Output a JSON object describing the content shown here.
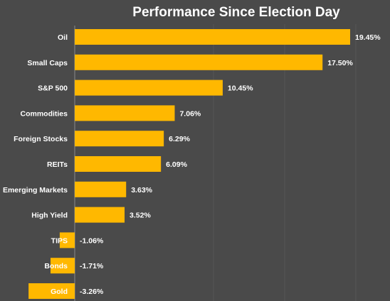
{
  "chart_data": {
    "type": "bar",
    "orientation": "horizontal",
    "title": "Performance Since Election Day",
    "categories": [
      "Oil",
      "Small Caps",
      "S&P 500",
      "Commodities",
      "Foreign Stocks",
      "REITs",
      "Emerging Markets",
      "High Yield",
      "TIPS",
      "Bonds",
      "Gold"
    ],
    "values": [
      19.45,
      17.5,
      10.45,
      7.06,
      6.29,
      6.09,
      3.63,
      3.52,
      -1.06,
      -1.71,
      -3.26
    ],
    "value_labels": [
      "19.45%",
      "17.50%",
      "10.45%",
      "7.06%",
      "6.29%",
      "6.09%",
      "3.63%",
      "3.52%",
      "-1.06%",
      "-1.71%",
      "-3.26%"
    ],
    "xlim": [
      -3.26,
      19.45
    ],
    "grid": true,
    "legend": "none",
    "bar_color": "#ffb800",
    "background_color": "#4a4a4a",
    "text_color": "#ffffff"
  }
}
